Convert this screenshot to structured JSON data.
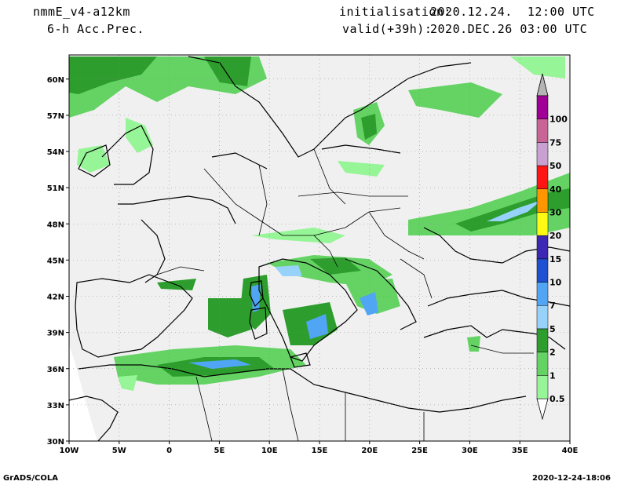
{
  "header": {
    "model": "nmmE_v4-a12km",
    "field": "6-h Acc.Prec.",
    "init_label": "initialisation:",
    "init_value": "2020.12.24.  12:00 UTC",
    "valid_label": "valid(+39h):",
    "valid_value": "2020.DEC.26 03:00 UTC"
  },
  "map": {
    "lat_ticks": [
      "30N",
      "33N",
      "36N",
      "39N",
      "42N",
      "45N",
      "48N",
      "51N",
      "54N",
      "57N",
      "60N"
    ],
    "lon_ticks": [
      "10W",
      "5W",
      "0",
      "5E",
      "10E",
      "15E",
      "20E",
      "25E",
      "30E",
      "35E",
      "40E"
    ],
    "lat_range": [
      30,
      62
    ],
    "lon_range": [
      -10,
      40
    ],
    "gridlines": true
  },
  "legend": {
    "levels": [
      "0.5",
      "1",
      "2",
      "5",
      "7",
      "10",
      "15",
      "20",
      "30",
      "40",
      "50",
      "75",
      "100"
    ],
    "colors": [
      "#96f596",
      "#64d364",
      "#2d9e2d",
      "#96d2fa",
      "#50a5f5",
      "#1e50d2",
      "#3c28b4",
      "#fffa14",
      "#ff9600",
      "#ff1414",
      "#c8a0d2",
      "#c86496",
      "#a00096"
    ],
    "under_color": "#ffffff",
    "over_color": "#b4b4b4"
  },
  "footer": {
    "left": "GrADS/COLA",
    "right": "2020-12-24-18:06"
  }
}
